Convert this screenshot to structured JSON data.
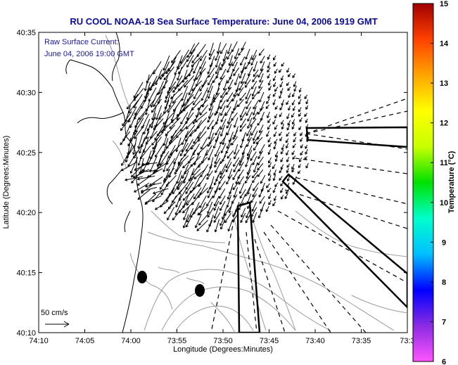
{
  "title": "RU COOL  NOAA-18  Sea Surface Temperature:  June 04, 2006 1919 GMT",
  "annotation": {
    "line1": "Raw Surface Current:",
    "line2": "June 04, 2006 19:00 GMT"
  },
  "scale_label": "50 cm/s",
  "x_axis": {
    "label": "Longitude (Degrees:Minutes)",
    "ticks": [
      "74:10",
      "74:05",
      "74:00",
      "73:55",
      "73:50",
      "73:45",
      "73:40",
      "73:35",
      "73:3"
    ]
  },
  "y_axis": {
    "label": "Latitude (Degrees:Minutes)",
    "ticks": [
      "40:35",
      "40:30",
      "40:25",
      "40:20",
      "40:15",
      "40:10"
    ]
  },
  "colorbar": {
    "label": "Temperature (°C)",
    "ticks": [
      "15",
      "14",
      "13",
      "12",
      "11",
      "10",
      "9",
      "8",
      "7",
      "6"
    ],
    "colors": [
      "#ff55ff",
      "#8a2be2",
      "#0000ff",
      "#00bfff",
      "#00ffcc",
      "#00e000",
      "#c8ff00",
      "#ffff00",
      "#ffa500",
      "#ff4000",
      "#a00000"
    ]
  }
}
